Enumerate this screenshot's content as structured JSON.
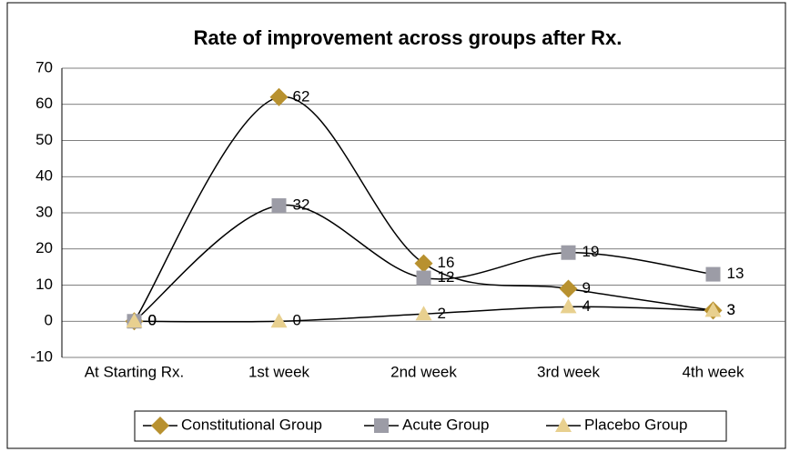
{
  "chart_data": {
    "type": "line",
    "title": "Rate of improvement across groups after Rx.",
    "categories": [
      "At Starting Rx.",
      "1st week",
      "2nd week",
      "3rd week",
      "4th week"
    ],
    "series": [
      {
        "name": "Constitutional Group",
        "color": "#b8912f",
        "marker": "diamond",
        "values": [
          0,
          62,
          16,
          9,
          3
        ]
      },
      {
        "name": "Acute Group",
        "color": "#9c9ca6",
        "marker": "square",
        "values": [
          0,
          32,
          12,
          19,
          13
        ]
      },
      {
        "name": "Placebo Group",
        "color": "#e8d08f",
        "marker": "triangle",
        "values": [
          0,
          0,
          2,
          4,
          3
        ]
      }
    ],
    "ylim": [
      -10,
      70
    ],
    "yticks": [
      -10,
      0,
      10,
      20,
      30,
      40,
      50,
      60,
      70
    ],
    "grid": true,
    "smooth": true,
    "legend": "bottom"
  }
}
